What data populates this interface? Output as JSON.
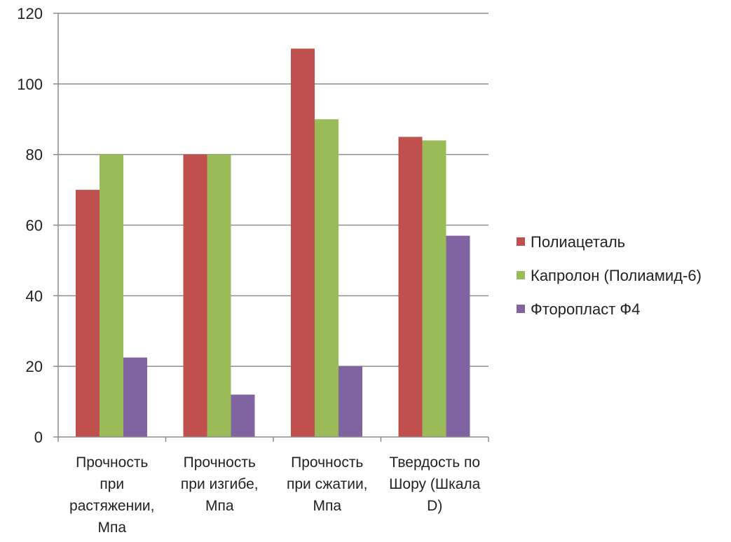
{
  "chart_data": {
    "type": "bar",
    "title": "",
    "xlabel": "",
    "ylabel": "",
    "ylim": [
      0,
      120
    ],
    "yticks": [
      0,
      20,
      40,
      60,
      80,
      100,
      120
    ],
    "grid": true,
    "legend_position": "right",
    "categories": [
      "Прочность при растяжении, Мпа",
      "Прочность при изгибе, Мпа",
      "Прочность при сжатии, Мпа",
      "Твердость по Шору (Шкала D)"
    ],
    "category_lines": [
      [
        "Прочность",
        "при",
        "растяжении,",
        "Мпа"
      ],
      [
        "Прочность",
        "при изгибе,",
        "Мпа"
      ],
      [
        "Прочность",
        "при сжатии,",
        "Мпа"
      ],
      [
        "Твердость по",
        "Шору (Шкала",
        "D)"
      ]
    ],
    "series": [
      {
        "name": "Полиацеталь",
        "color": "#c0504d",
        "values": [
          70,
          80,
          110,
          85
        ]
      },
      {
        "name": "Капролон (Полиамид-6)",
        "color": "#9bbb59",
        "values": [
          80,
          80,
          90,
          84
        ]
      },
      {
        "name": "Фторопласт Ф4",
        "color": "#8064a2",
        "values": [
          22.5,
          12,
          20,
          57
        ]
      }
    ]
  }
}
